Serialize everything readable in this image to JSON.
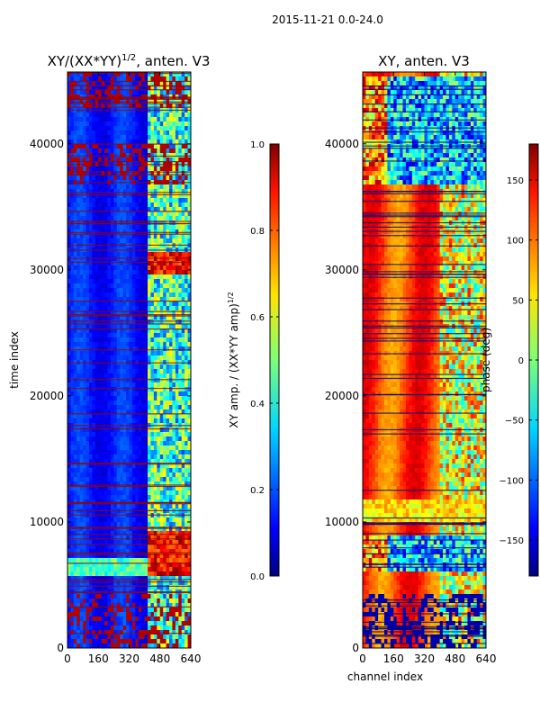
{
  "suptitle": "2015-11-21 0.0-24.0",
  "chart_data": [
    {
      "type": "heatmap",
      "title": "XY/(XX*YY)",
      "title_superscript": "1/2",
      "title_suffix": ", anten. V3",
      "xlabel": "",
      "ylabel": "time index",
      "xlim": [
        0,
        640
      ],
      "ylim": [
        0,
        45700
      ],
      "xticks": [
        0,
        160,
        320,
        480,
        640
      ],
      "xtick_labels": [
        "0",
        "160",
        "320",
        "480",
        "640"
      ],
      "yticks": [
        0,
        10000,
        20000,
        30000,
        40000
      ],
      "ytick_labels": [
        "0",
        "10000",
        "20000",
        "30000",
        "40000"
      ],
      "colormap": "jet",
      "colorbar": {
        "label": "XY amp. / (XX*YY amp)",
        "label_superscript": "1/2",
        "range": [
          0.0,
          1.0
        ],
        "ticks": [
          0.0,
          0.2,
          0.4,
          0.6,
          0.8,
          1.0
        ],
        "tick_labels": [
          "0.0",
          "0.2",
          "0.4",
          "0.6",
          "0.8",
          "1.0"
        ]
      }
    },
    {
      "type": "heatmap",
      "title": "XY, anten. V3",
      "xlabel": "channel index",
      "ylabel": "",
      "xlim": [
        0,
        640
      ],
      "ylim": [
        0,
        45700
      ],
      "xticks": [
        0,
        160,
        320,
        480,
        640
      ],
      "xtick_labels": [
        "0",
        "160",
        "320",
        "480",
        "640"
      ],
      "yticks": [
        0,
        10000,
        20000,
        30000,
        40000
      ],
      "ytick_labels": [
        "0",
        "10000",
        "20000",
        "30000",
        "40000"
      ],
      "colormap": "jet",
      "colorbar": {
        "label": "phase (deg)",
        "range": [
          -180,
          180
        ],
        "ticks": [
          -150,
          -100,
          -50,
          0,
          50,
          100,
          150
        ],
        "tick_labels": [
          "−150",
          "−100",
          "−50",
          "0",
          "50",
          "100",
          "150"
        ]
      }
    }
  ]
}
